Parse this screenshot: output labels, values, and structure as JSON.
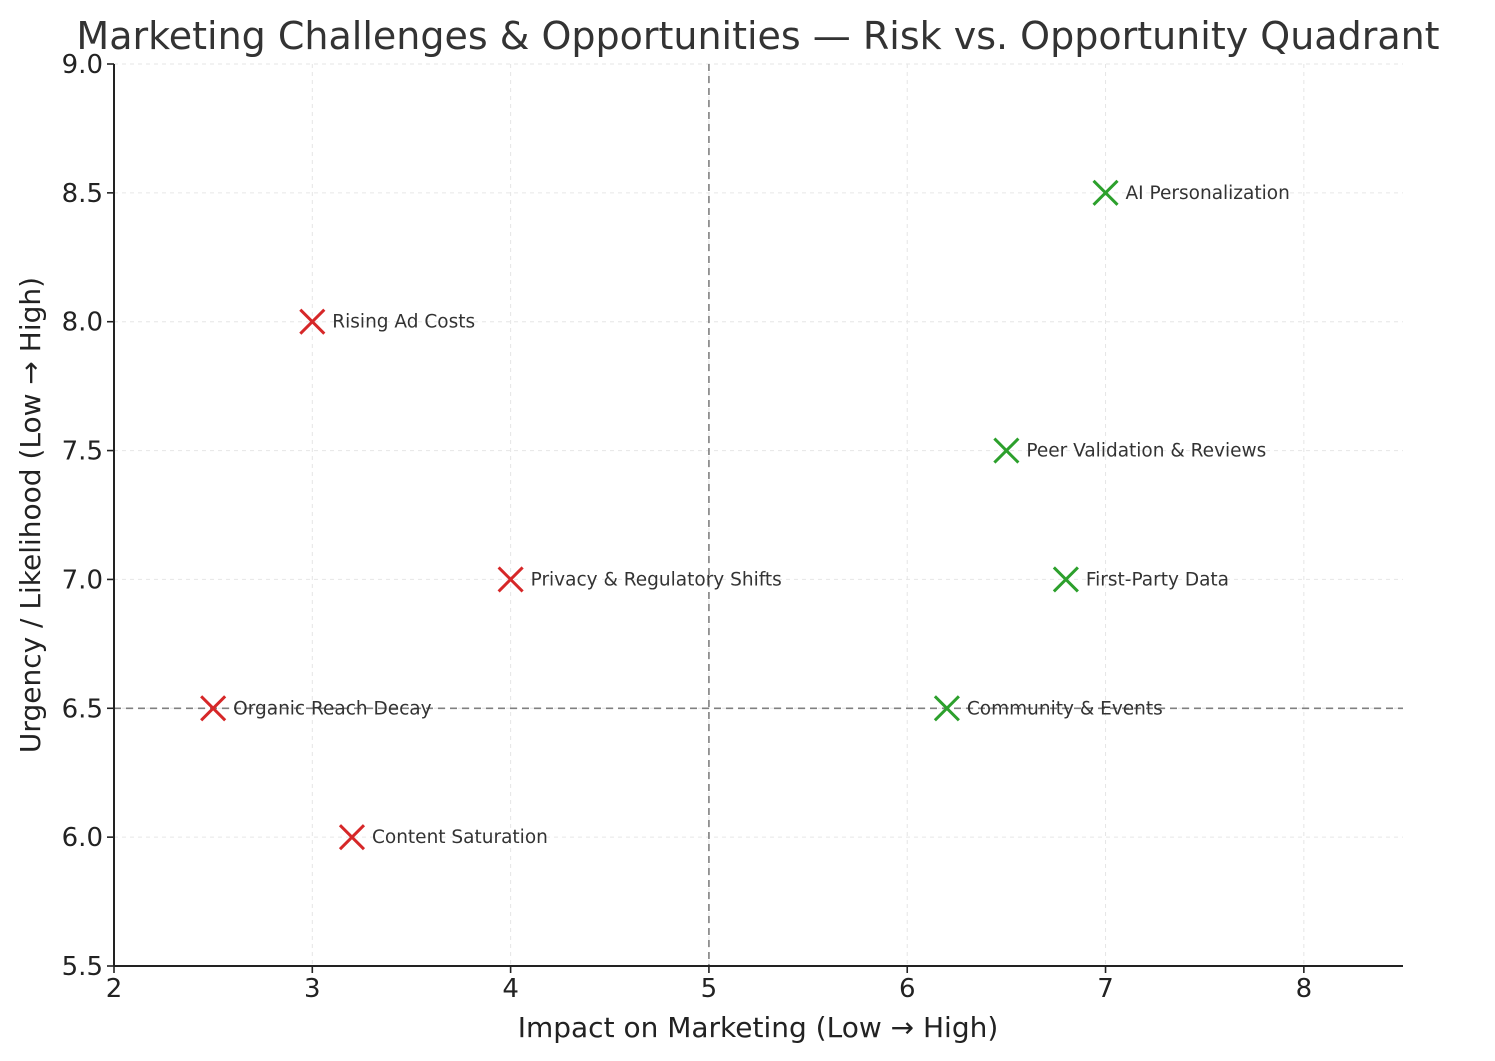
{
  "chart_data": {
    "type": "scatter",
    "title": "Marketing Challenges & Opportunities — Risk vs. Opportunity Quadrant",
    "xlabel": "Impact on Marketing (Low → High)",
    "ylabel": "Urgency / Likelihood (Low → High)",
    "xlim": [
      2,
      8.5
    ],
    "ylim": [
      5.5,
      9.0
    ],
    "xticks": [
      2,
      3,
      4,
      5,
      6,
      7,
      8
    ],
    "xtick_labels": [
      "2",
      "3",
      "4",
      "5",
      "6",
      "7",
      "8"
    ],
    "yticks": [
      5.5,
      6.0,
      6.5,
      7.0,
      7.5,
      8.0,
      8.5,
      9.0
    ],
    "ytick_labels": [
      "5.5",
      "6.0",
      "6.5",
      "7.0",
      "7.5",
      "8.0",
      "8.5",
      "9.0"
    ],
    "grid": true,
    "reference_lines": {
      "x": 5,
      "y": 6.5
    },
    "marker": "x",
    "colors": {
      "risk": "#d62728",
      "opportunity": "#2ca02c"
    },
    "points": [
      {
        "label": "Rising Ad Costs",
        "x": 3,
        "y": 8.0,
        "group": "risk"
      },
      {
        "label": "Privacy & Regulatory Shifts",
        "x": 4,
        "y": 7.0,
        "group": "risk"
      },
      {
        "label": "Organic Reach Decay",
        "x": 2.5,
        "y": 6.5,
        "group": "risk"
      },
      {
        "label": "Content Saturation",
        "x": 3.2,
        "y": 6.0,
        "group": "risk"
      },
      {
        "label": "AI Personalization",
        "x": 7,
        "y": 8.5,
        "group": "opportunity"
      },
      {
        "label": "Peer Validation & Reviews",
        "x": 6.5,
        "y": 7.5,
        "group": "opportunity"
      },
      {
        "label": "First-Party Data",
        "x": 6.8,
        "y": 7.0,
        "group": "opportunity"
      },
      {
        "label": "Community & Events",
        "x": 6.2,
        "y": 6.5,
        "group": "opportunity"
      }
    ]
  }
}
